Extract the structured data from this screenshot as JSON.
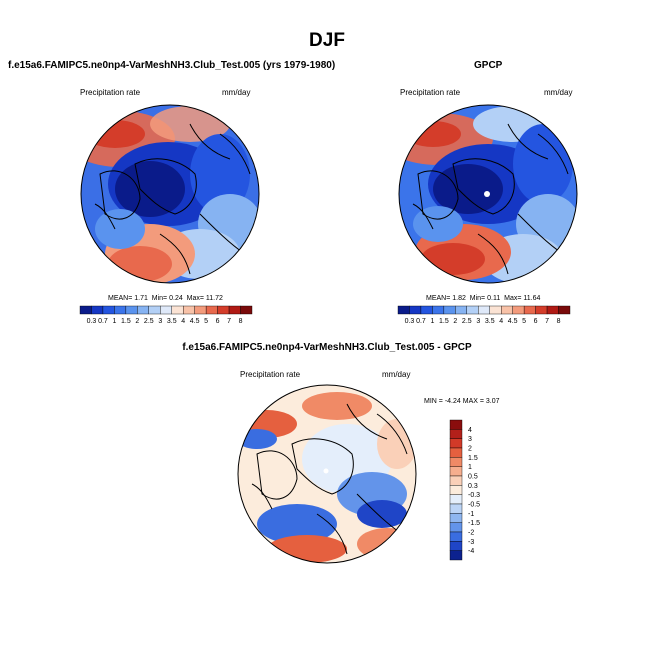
{
  "season": "DJF",
  "panels": {
    "model": {
      "title": "f.e15a6.FAMIPC5.ne0np4-VarMeshNH3.Club_Test.005 (yrs 1979-1980)",
      "variable": "Precipitation rate",
      "units": "mm/day",
      "stats": {
        "mean_label": "MEAN=",
        "mean": "1.71",
        "min_label": "Min=",
        "min": "0.24",
        "max_label": "Max=",
        "max": "11.72"
      }
    },
    "obs": {
      "title": "GPCP",
      "variable": "Precipitation rate",
      "units": "mm/day",
      "stats": {
        "mean_label": "MEAN=",
        "mean": "1.82",
        "min_label": "Min=",
        "min": "0.11",
        "max_label": "Max=",
        "max": "11.64"
      }
    },
    "diff": {
      "title": "f.e15a6.FAMIPC5.ne0np4-VarMeshNH3.Club_Test.005 - GPCP",
      "variable": "Precipitation rate",
      "units": "mm/day",
      "stats": {
        "min_label": "MIN =",
        "min": "-4.24",
        "max_label": "MAX =",
        "max": "3.07"
      }
    }
  },
  "colorbar_precip": {
    "labels": [
      "0.3",
      "0.7",
      "1",
      "1.5",
      "2",
      "2.5",
      "3",
      "3.5",
      "4",
      "4.5",
      "5",
      "6",
      "7",
      "8"
    ],
    "colors": [
      "#0a1b8a",
      "#1537c4",
      "#2455e0",
      "#3b74ea",
      "#5a93ee",
      "#86b3f2",
      "#b3d0f6",
      "#dfe9f9",
      "#fbe3d4",
      "#f8c2a8",
      "#f39b7c",
      "#e8694d",
      "#d43d2a",
      "#b01a14",
      "#7a0a0a"
    ]
  },
  "colorbar_diff": {
    "labels": [
      "4",
      "3",
      "2",
      "1.5",
      "1",
      "0.5",
      "0.3",
      "-0.3",
      "-0.5",
      "-1",
      "-1.5",
      "-2",
      "-3",
      "-4"
    ],
    "colors": [
      "#8a0d0d",
      "#b3201a",
      "#d23a28",
      "#e5603f",
      "#f08a66",
      "#f6ae8e",
      "#fad0b8",
      "#fcecdc",
      "#e4eefb",
      "#bcd4f6",
      "#8fb6f0",
      "#6394ea",
      "#3a6de0",
      "#1f45c7",
      "#0c228f"
    ]
  }
}
